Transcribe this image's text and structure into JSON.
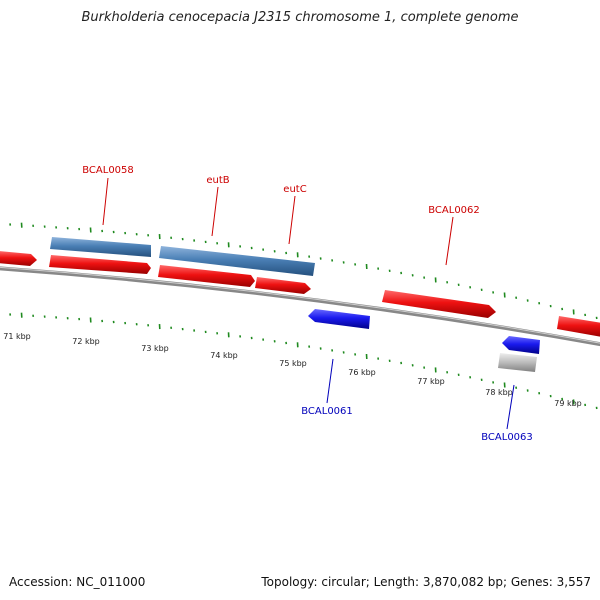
{
  "title": "Burkholderia cenocepacia J2315 chromosome 1, complete genome",
  "footer": {
    "accession": "Accession: NC_011000",
    "summary": "Topology: circular; Length: 3,870,082 bp; Genes: 3,557"
  },
  "colors": {
    "forward_cds": "#ee1111",
    "reverse_cds": "#1a1aee",
    "gene_span": "#4a7fb5",
    "pseudo": "#bbbbbb",
    "backbone": "#888888",
    "ticks": "#1f8a1f",
    "forward_label": "#cc0000",
    "reverse_label": "#0000bb",
    "scale_label": "#222222"
  },
  "scale_labels": [
    "71 kbp",
    "72 kbp",
    "73 kbp",
    "74 kbp",
    "75 kbp",
    "76 kbp",
    "77 kbp",
    "78 kbp",
    "79 kbp"
  ],
  "features": {
    "forward_labels": [
      "BCAL0058",
      "eutB",
      "eutC",
      "BCAL0062"
    ],
    "reverse_labels": [
      "BCAL0061",
      "BCAL0063"
    ]
  }
}
